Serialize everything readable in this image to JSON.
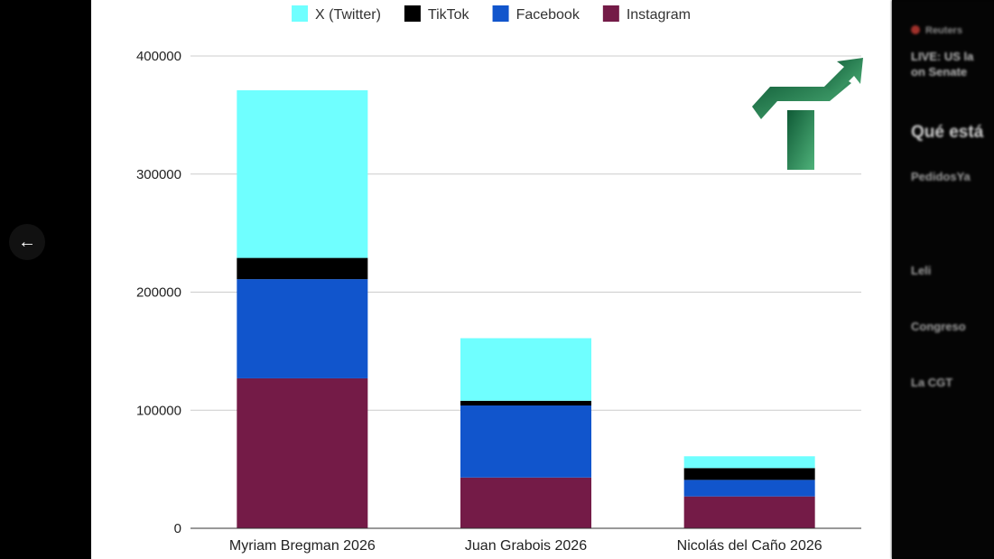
{
  "chart_data": {
    "type": "bar",
    "stacked": true,
    "categories": [
      "Myriam Bregman 2026",
      "Juan Grabois 2026",
      "Nicolás del Caño 2026"
    ],
    "series": [
      {
        "name": "Instagram",
        "color": "#741b47",
        "values": [
          127000,
          43000,
          27000
        ]
      },
      {
        "name": "Facebook",
        "color": "#1155cc",
        "values": [
          84000,
          61000,
          14000
        ]
      },
      {
        "name": "TikTok",
        "color": "#000000",
        "values": [
          18000,
          4000,
          10000
        ]
      },
      {
        "name": "X (Twitter)",
        "color": "#6fffff",
        "values": [
          142000,
          53000,
          10000
        ]
      }
    ],
    "legend_order": [
      "X (Twitter)",
      "TikTok",
      "Facebook",
      "Instagram"
    ],
    "yticks": [
      "0",
      "100000",
      "200000",
      "300000",
      "400000"
    ],
    "ylim": [
      0,
      400000
    ],
    "grid": true,
    "legend_position": "top"
  },
  "logo": {
    "name": "trend-arrow-logo",
    "color": "#1e7a4a"
  },
  "sidebar": {
    "back_icon": "arrow-left-icon",
    "source": "Reuters",
    "headline_line1": "LIVE: US la",
    "headline_line2": "on Senate",
    "section_title": "Qué está",
    "items": [
      {
        "label": "PedidosYa"
      },
      {
        "label": "Leli"
      },
      {
        "label": "Congreso"
      },
      {
        "label": "La CGT"
      }
    ]
  }
}
